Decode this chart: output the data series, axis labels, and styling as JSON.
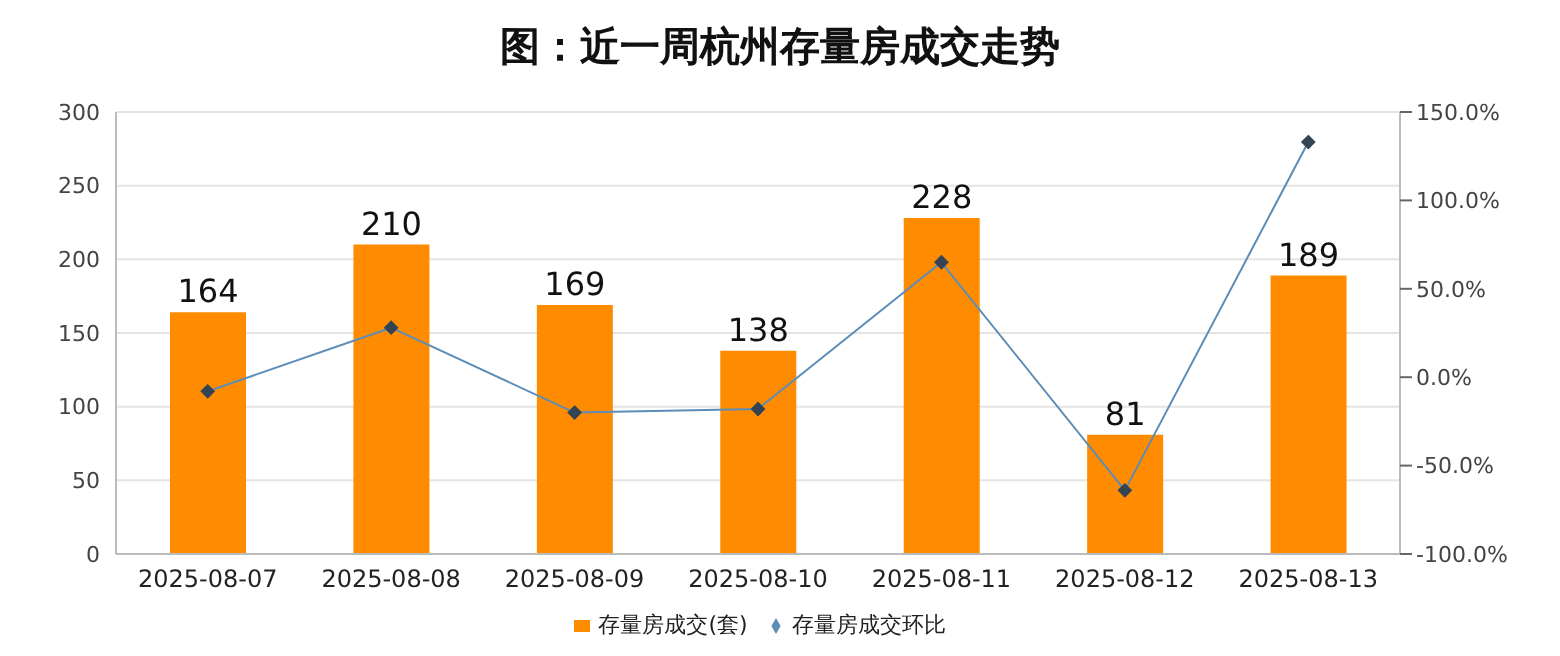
{
  "chart_data": {
    "type": "bar",
    "title": "图：近一周杭州存量房成交走势",
    "categories": [
      "2025-08-07",
      "2025-08-08",
      "2025-08-09",
      "2025-08-10",
      "2025-08-11",
      "2025-08-12",
      "2025-08-13"
    ],
    "series": [
      {
        "name": "存量房成交(套)",
        "color": "#ff8c00",
        "values": [
          164,
          210,
          169,
          138,
          228,
          81,
          189
        ],
        "data_labels": true
      },
      {
        "name": "存量房成交环比",
        "type": "line",
        "axis": "y2",
        "color": "#5b8db8",
        "values": [
          -8,
          28,
          -20,
          -18,
          65,
          -64,
          133
        ],
        "marker": "diamond"
      }
    ],
    "ylim": [
      0,
      300
    ],
    "yticks": [
      0,
      50,
      100,
      150,
      200,
      250,
      300
    ],
    "y2lim": [
      -100,
      150
    ],
    "y2ticks": [
      {
        "value": -100,
        "label": "-100.0%"
      },
      {
        "value": -50,
        "label": "-50.0%"
      },
      {
        "value": 0,
        "label": "0.0%"
      },
      {
        "value": 50,
        "label": "50.0%"
      },
      {
        "value": 100,
        "label": "100.0%"
      },
      {
        "value": 150,
        "label": "150.0%"
      }
    ],
    "grid": "y",
    "legend": "bottom"
  }
}
